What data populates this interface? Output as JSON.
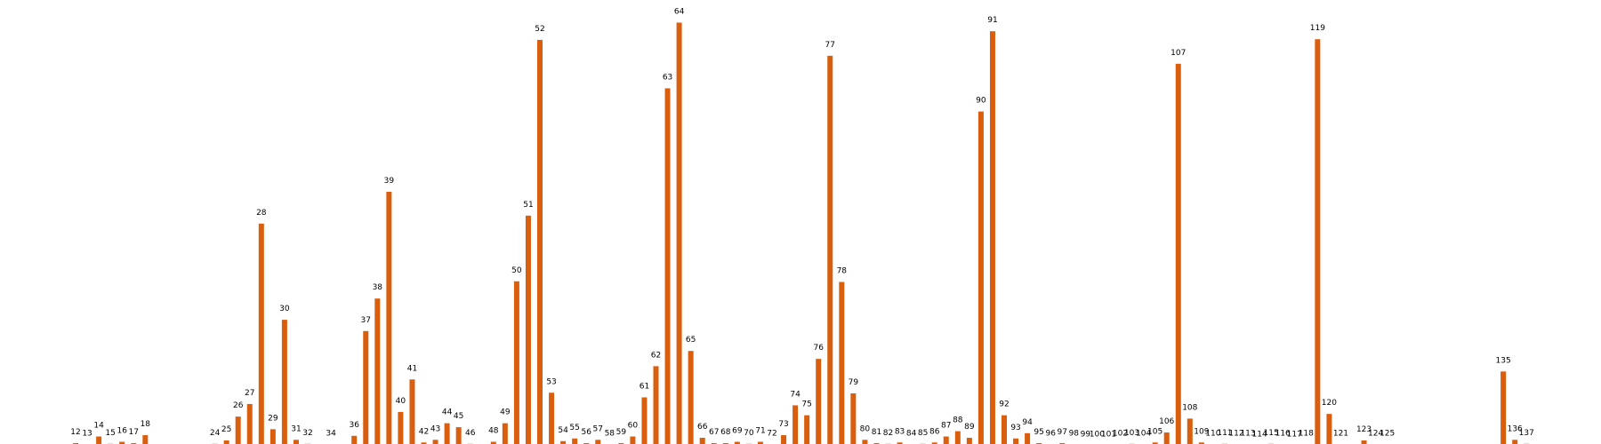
{
  "chart_data": {
    "type": "bar",
    "bar_color": "#d95f0e",
    "grid": false,
    "axes_visible": false,
    "x_range": [
      12,
      137
    ],
    "ylim": [
      0,
      64
    ],
    "data_labels": "category",
    "points": [
      {
        "x": 12,
        "y": 0.4
      },
      {
        "x": 13,
        "y": 0.2
      },
      {
        "x": 14,
        "y": 1.4
      },
      {
        "x": 15,
        "y": 0.3
      },
      {
        "x": 16,
        "y": 0.6
      },
      {
        "x": 17,
        "y": 0.4
      },
      {
        "x": 18,
        "y": 1.6
      },
      {
        "x": 24,
        "y": 0.3
      },
      {
        "x": 25,
        "y": 0.8
      },
      {
        "x": 26,
        "y": 4.4
      },
      {
        "x": 27,
        "y": 6.3
      },
      {
        "x": 28,
        "y": 33.5
      },
      {
        "x": 29,
        "y": 2.5
      },
      {
        "x": 30,
        "y": 19.0
      },
      {
        "x": 31,
        "y": 0.9
      },
      {
        "x": 32,
        "y": 0.3
      },
      {
        "x": 34,
        "y": 0.2
      },
      {
        "x": 36,
        "y": 1.5
      },
      {
        "x": 37,
        "y": 17.3
      },
      {
        "x": 38,
        "y": 22.2
      },
      {
        "x": 39,
        "y": 38.3
      },
      {
        "x": 40,
        "y": 5.1
      },
      {
        "x": 41,
        "y": 10.0
      },
      {
        "x": 42,
        "y": 0.5
      },
      {
        "x": 43,
        "y": 0.9
      },
      {
        "x": 44,
        "y": 3.4
      },
      {
        "x": 45,
        "y": 2.8
      },
      {
        "x": 46,
        "y": 0.3
      },
      {
        "x": 48,
        "y": 0.6
      },
      {
        "x": 49,
        "y": 3.4
      },
      {
        "x": 50,
        "y": 24.8
      },
      {
        "x": 51,
        "y": 34.7
      },
      {
        "x": 52,
        "y": 61.2
      },
      {
        "x": 53,
        "y": 8.0
      },
      {
        "x": 54,
        "y": 0.7
      },
      {
        "x": 55,
        "y": 1.1
      },
      {
        "x": 56,
        "y": 0.4
      },
      {
        "x": 57,
        "y": 0.9
      },
      {
        "x": 58,
        "y": 0.2
      },
      {
        "x": 59,
        "y": 0.4
      },
      {
        "x": 60,
        "y": 1.4
      },
      {
        "x": 61,
        "y": 7.3
      },
      {
        "x": 62,
        "y": 12.0
      },
      {
        "x": 63,
        "y": 53.9
      },
      {
        "x": 64,
        "y": 63.8
      },
      {
        "x": 65,
        "y": 14.3
      },
      {
        "x": 66,
        "y": 1.2
      },
      {
        "x": 67,
        "y": 0.4
      },
      {
        "x": 68,
        "y": 0.4
      },
      {
        "x": 69,
        "y": 0.6
      },
      {
        "x": 70,
        "y": 0.3
      },
      {
        "x": 71,
        "y": 0.6
      },
      {
        "x": 72,
        "y": 0.2
      },
      {
        "x": 73,
        "y": 1.6
      },
      {
        "x": 74,
        "y": 6.1
      },
      {
        "x": 75,
        "y": 4.6
      },
      {
        "x": 76,
        "y": 13.1
      },
      {
        "x": 77,
        "y": 58.8
      },
      {
        "x": 78,
        "y": 24.7
      },
      {
        "x": 79,
        "y": 7.9
      },
      {
        "x": 80,
        "y": 0.9
      },
      {
        "x": 81,
        "y": 0.4
      },
      {
        "x": 82,
        "y": 0.3
      },
      {
        "x": 83,
        "y": 0.5
      },
      {
        "x": 84,
        "y": 0.2
      },
      {
        "x": 85,
        "y": 0.3
      },
      {
        "x": 86,
        "y": 0.5
      },
      {
        "x": 87,
        "y": 1.4
      },
      {
        "x": 88,
        "y": 2.2
      },
      {
        "x": 89,
        "y": 1.2
      },
      {
        "x": 90,
        "y": 50.4
      },
      {
        "x": 91,
        "y": 62.5
      },
      {
        "x": 92,
        "y": 4.6
      },
      {
        "x": 93,
        "y": 1.1
      },
      {
        "x": 94,
        "y": 1.9
      },
      {
        "x": 95,
        "y": 0.4
      },
      {
        "x": 96,
        "y": 0.2
      },
      {
        "x": 97,
        "y": 0.4
      },
      {
        "x": 98,
        "y": 0.2
      },
      {
        "x": 99,
        "y": 0.1
      },
      {
        "x": 100,
        "y": 0.05
      },
      {
        "x": 101,
        "y": 0.1
      },
      {
        "x": 102,
        "y": 0.2
      },
      {
        "x": 103,
        "y": 0.3
      },
      {
        "x": 104,
        "y": 0.2
      },
      {
        "x": 105,
        "y": 0.5
      },
      {
        "x": 106,
        "y": 2.0
      },
      {
        "x": 107,
        "y": 57.6
      },
      {
        "x": 108,
        "y": 4.1
      },
      {
        "x": 109,
        "y": 0.5
      },
      {
        "x": 110,
        "y": 0.2
      },
      {
        "x": 111,
        "y": 0.3
      },
      {
        "x": 112,
        "y": 0.2
      },
      {
        "x": 113,
        "y": 0.2
      },
      {
        "x": 114,
        "y": 0.1
      },
      {
        "x": 115,
        "y": 0.3
      },
      {
        "x": 116,
        "y": 0.2
      },
      {
        "x": 117,
        "y": 0.1
      },
      {
        "x": 118,
        "y": 0.2
      },
      {
        "x": 119,
        "y": 61.3
      },
      {
        "x": 120,
        "y": 4.8
      },
      {
        "x": 121,
        "y": 0.2
      },
      {
        "x": 123,
        "y": 0.8
      },
      {
        "x": 124,
        "y": 0.2
      },
      {
        "x": 125,
        "y": 0.2
      },
      {
        "x": 135,
        "y": 11.2
      },
      {
        "x": 136,
        "y": 0.9
      },
      {
        "x": 137,
        "y": 0.3
      }
    ]
  }
}
